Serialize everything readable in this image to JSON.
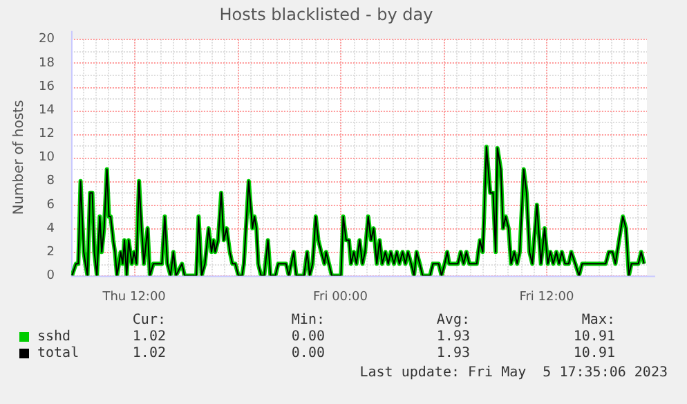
{
  "chart_data": {
    "type": "line",
    "title": "Hosts blacklisted - by day",
    "ylabel": "Number of hosts",
    "x": [
      "2023-05-04T08:23",
      "2023-05-04T08:37",
      "2023-05-04T08:45",
      "2023-05-04T08:53",
      "2023-05-04T09:04",
      "2023-05-04T09:10",
      "2023-05-04T09:17",
      "2023-05-04T09:26",
      "2023-05-04T09:34",
      "2023-05-04T09:41",
      "2023-05-04T09:50",
      "2023-05-04T10:00",
      "2023-05-04T10:07",
      "2023-05-04T10:15",
      "2023-05-04T10:25",
      "2023-05-04T10:32",
      "2023-05-04T10:38",
      "2023-05-04T10:47",
      "2023-05-04T10:53",
      "2023-05-04T11:00",
      "2023-05-04T11:07",
      "2023-05-04T11:13",
      "2023-05-04T11:20",
      "2023-05-04T11:26",
      "2023-05-04T11:34",
      "2023-05-04T11:41",
      "2023-05-04T11:52",
      "2023-05-04T12:00",
      "2023-05-04T12:08",
      "2023-05-04T12:17",
      "2023-05-04T12:26",
      "2023-05-04T12:34",
      "2023-05-04T12:47",
      "2023-05-04T12:55",
      "2023-05-04T13:07",
      "2023-05-04T13:23",
      "2023-05-04T13:37",
      "2023-05-04T13:47",
      "2023-05-04T13:56",
      "2023-05-04T14:07",
      "2023-05-04T14:17",
      "2023-05-04T14:26",
      "2023-05-04T14:47",
      "2023-05-04T14:56",
      "2023-05-04T15:37",
      "2023-05-04T15:45",
      "2023-05-04T15:56",
      "2023-05-04T16:07",
      "2023-05-04T16:20",
      "2023-05-04T16:30",
      "2023-05-04T16:37",
      "2023-05-04T16:43",
      "2023-05-04T16:53",
      "2023-05-04T17:04",
      "2023-05-04T17:13",
      "2023-05-04T17:23",
      "2023-05-04T17:34",
      "2023-05-04T17:43",
      "2023-05-04T17:53",
      "2023-05-04T18:04",
      "2023-05-04T18:17",
      "2023-05-04T18:23",
      "2023-05-04T18:40",
      "2023-05-04T18:53",
      "2023-05-04T19:00",
      "2023-05-04T19:07",
      "2023-05-04T19:13",
      "2023-05-04T19:23",
      "2023-05-04T19:34",
      "2023-05-04T19:47",
      "2023-05-04T19:56",
      "2023-05-04T20:13",
      "2023-05-04T20:23",
      "2023-05-04T20:50",
      "2023-05-04T21:00",
      "2023-05-04T21:17",
      "2023-05-04T21:26",
      "2023-05-04T21:53",
      "2023-05-04T22:04",
      "2023-05-04T22:13",
      "2023-05-04T22:23",
      "2023-05-04T22:34",
      "2023-05-04T22:43",
      "2023-05-04T22:53",
      "2023-05-04T23:04",
      "2023-05-04T23:10",
      "2023-05-04T23:20",
      "2023-05-04T23:30",
      "2023-05-04T23:50",
      "2023-05-05T00:02",
      "2023-05-05T00:10",
      "2023-05-05T00:20",
      "2023-05-05T00:30",
      "2023-05-05T00:37",
      "2023-05-05T00:47",
      "2023-05-05T00:56",
      "2023-05-05T01:07",
      "2023-05-05T01:17",
      "2023-05-05T01:26",
      "2023-05-05T01:37",
      "2023-05-05T01:47",
      "2023-05-05T01:56",
      "2023-05-05T02:07",
      "2023-05-05T02:17",
      "2023-05-05T02:26",
      "2023-05-05T02:37",
      "2023-05-05T02:47",
      "2023-05-05T02:56",
      "2023-05-05T03:07",
      "2023-05-05T03:17",
      "2023-05-05T03:26",
      "2023-05-05T03:37",
      "2023-05-05T03:47",
      "2023-05-05T03:56",
      "2023-05-05T04:07",
      "2023-05-05T04:17",
      "2023-05-05T04:26",
      "2023-05-05T04:37",
      "2023-05-05T04:47",
      "2023-05-05T05:13",
      "2023-05-05T05:23",
      "2023-05-05T05:43",
      "2023-05-05T05:53",
      "2023-05-05T06:04",
      "2023-05-05T06:13",
      "2023-05-05T06:20",
      "2023-05-05T06:50",
      "2023-05-05T07:00",
      "2023-05-05T07:10",
      "2023-05-05T07:20",
      "2023-05-05T07:30",
      "2023-05-05T07:56",
      "2023-05-05T08:07",
      "2023-05-05T08:17",
      "2023-05-05T08:30",
      "2023-05-05T08:43",
      "2023-05-05T08:53",
      "2023-05-05T09:02",
      "2023-05-05T09:08",
      "2023-05-05T09:20",
      "2023-05-05T09:28",
      "2023-05-05T09:37",
      "2023-05-05T09:47",
      "2023-05-05T09:56",
      "2023-05-05T10:07",
      "2023-05-05T10:17",
      "2023-05-05T10:26",
      "2023-05-05T10:40",
      "2023-05-05T10:50",
      "2023-05-05T11:00",
      "2023-05-05T11:10",
      "2023-05-05T11:26",
      "2023-05-05T11:40",
      "2023-05-05T11:53",
      "2023-05-05T12:04",
      "2023-05-05T12:13",
      "2023-05-05T12:23",
      "2023-05-05T12:34",
      "2023-05-05T12:43",
      "2023-05-05T12:53",
      "2023-05-05T13:04",
      "2023-05-05T13:17",
      "2023-05-05T13:26",
      "2023-05-05T13:40",
      "2023-05-05T13:53",
      "2023-05-05T14:04",
      "2023-05-05T15:26",
      "2023-05-05T15:37",
      "2023-05-05T15:50",
      "2023-05-05T16:00",
      "2023-05-05T16:26",
      "2023-05-05T16:37",
      "2023-05-05T16:47",
      "2023-05-05T16:56",
      "2023-05-05T17:20",
      "2023-05-05T17:30",
      "2023-05-05T17:40"
    ],
    "series": [
      {
        "name": "sshd",
        "color": "#00cc00",
        "values": [
          0,
          1,
          1,
          8,
          2,
          1,
          0,
          7,
          7,
          2,
          0,
          5,
          2,
          4,
          9,
          5,
          5,
          3,
          2,
          0,
          1,
          2,
          1,
          3,
          0,
          3,
          1,
          2,
          1,
          8,
          4,
          1,
          4,
          0,
          1,
          1,
          1,
          5,
          1,
          0,
          2,
          0,
          1,
          0,
          0,
          5,
          0,
          1,
          4,
          2,
          3,
          2,
          3,
          7,
          3,
          4,
          2,
          1,
          1,
          0,
          0,
          1,
          8,
          4,
          5,
          4,
          1,
          0,
          0,
          3,
          0,
          0,
          1,
          1,
          0,
          2,
          0,
          0,
          2,
          0,
          1,
          5,
          3,
          2,
          1,
          2,
          1,
          0,
          0,
          0,
          5,
          3,
          3,
          1,
          2,
          1,
          3,
          1,
          2,
          5,
          3,
          4,
          1,
          3,
          1,
          2,
          1,
          2,
          1,
          2,
          1,
          2,
          1,
          2,
          1,
          0,
          2,
          1,
          0,
          0,
          1,
          1,
          0,
          1,
          2,
          1,
          1,
          2,
          1,
          2,
          1,
          1,
          3,
          2,
          10.9,
          7,
          7,
          2,
          10.8,
          9,
          4,
          5,
          4,
          1,
          2,
          1,
          2,
          9,
          7,
          2,
          1,
          6,
          1,
          4,
          1,
          2,
          1,
          2,
          1,
          2,
          1,
          1,
          2,
          1,
          0,
          1,
          1,
          2,
          2,
          1,
          5,
          4,
          0,
          1,
          1,
          2,
          1
        ]
      },
      {
        "name": "total",
        "color": "#000000",
        "values": [
          0,
          1,
          1,
          8,
          2,
          1,
          0,
          7,
          7,
          2,
          0,
          5,
          2,
          4,
          9,
          5,
          5,
          3,
          2,
          0,
          1,
          2,
          1,
          3,
          0,
          3,
          1,
          2,
          1,
          8,
          4,
          1,
          4,
          0,
          1,
          1,
          1,
          5,
          1,
          0,
          2,
          0,
          1,
          0,
          0,
          5,
          0,
          1,
          4,
          2,
          3,
          2,
          3,
          7,
          3,
          4,
          2,
          1,
          1,
          0,
          0,
          1,
          8,
          4,
          5,
          4,
          1,
          0,
          0,
          3,
          0,
          0,
          1,
          1,
          0,
          2,
          0,
          0,
          2,
          0,
          1,
          5,
          3,
          2,
          1,
          2,
          1,
          0,
          0,
          0,
          5,
          3,
          3,
          1,
          2,
          1,
          3,
          1,
          2,
          5,
          3,
          4,
          1,
          3,
          1,
          2,
          1,
          2,
          1,
          2,
          1,
          2,
          1,
          2,
          1,
          0,
          2,
          1,
          0,
          0,
          1,
          1,
          0,
          1,
          2,
          1,
          1,
          2,
          1,
          2,
          1,
          1,
          3,
          2,
          10.9,
          7,
          7,
          2,
          10.8,
          9,
          4,
          5,
          4,
          1,
          2,
          1,
          2,
          9,
          7,
          2,
          1,
          6,
          1,
          4,
          1,
          2,
          1,
          2,
          1,
          2,
          1,
          1,
          2,
          1,
          0,
          1,
          1,
          2,
          2,
          1,
          5,
          4,
          0,
          1,
          1,
          2,
          1
        ]
      }
    ],
    "xlim": [
      "2023-05-04T08:20",
      "2023-05-05T17:50"
    ],
    "xticks": [
      {
        "value": "2023-05-04T12:00",
        "label": "Thu 12:00"
      },
      {
        "value": "2023-05-04T18:00",
        "label": null
      },
      {
        "value": "2023-05-05T00:00",
        "label": "Fri 00:00"
      },
      {
        "value": "2023-05-05T06:00",
        "label": null
      },
      {
        "value": "2023-05-05T12:00",
        "label": "Fri 12:00"
      }
    ],
    "ylim": [
      0,
      20
    ],
    "yticks": [
      0,
      2,
      4,
      6,
      8,
      10,
      12,
      14,
      16,
      18,
      20
    ],
    "grid": true,
    "legend": "bottom left",
    "marker": "none",
    "line_style": "solid",
    "annotations": [
      "Cur:",
      "Min:",
      "Avg:",
      "Max:",
      "1.02",
      "0.00",
      "1.93",
      "10.91",
      "1.02",
      "0.00",
      "1.93",
      "10.91",
      "Last update: Fri May  5 17:35:06 2023"
    ]
  }
}
